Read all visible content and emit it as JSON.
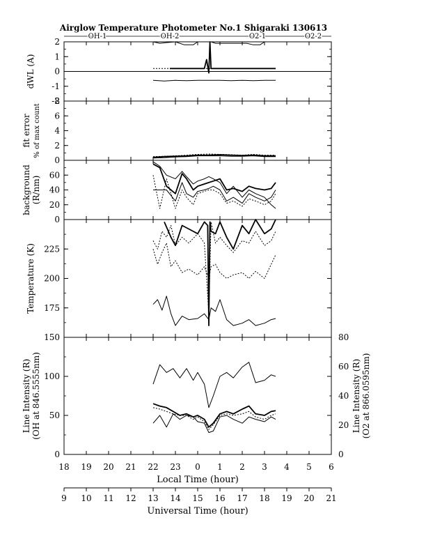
{
  "chart_data": {
    "type": "line",
    "title": "Airglow Temperature Photometer No.1  Shigaraki  130613",
    "legend": [
      "OH-1",
      "OH-2",
      "O2-1",
      "O2-2"
    ],
    "x_local": {
      "label": "Local Time (hour)",
      "ticks": [
        "18",
        "19",
        "20",
        "21",
        "22",
        "23",
        "0",
        "1",
        "2",
        "3",
        "4",
        "5",
        "6"
      ]
    },
    "x_ut": {
      "label": "Universal Time (hour)",
      "ticks": [
        "9",
        "10",
        "11",
        "12",
        "13",
        "14",
        "15",
        "16",
        "17",
        "18",
        "19",
        "20",
        "21"
      ]
    },
    "panels": [
      {
        "id": "dwl",
        "ylabel": [
          "dWL (A)"
        ],
        "ylim": [
          -2,
          2
        ],
        "yticks": [
          "-2",
          "-1",
          "0",
          "1",
          "2"
        ],
        "series": [
          {
            "style": "solid",
            "x": [
              13.0,
              13.5,
              14.0,
              14.5,
              15.0,
              15.4,
              15.5,
              15.6,
              15.8,
              16.0,
              16.5,
              17.0,
              17.5,
              18.0,
              18.5
            ],
            "y": [
              -0.6,
              -0.65,
              -0.6,
              -0.62,
              -0.6,
              -0.6,
              -0.6,
              -0.6,
              -0.6,
              -0.6,
              -0.62,
              -0.6,
              -0.62,
              -0.6,
              -0.6
            ]
          },
          {
            "style": "dotted",
            "x": [
              13.0,
              13.5,
              14.0,
              15.0,
              15.5,
              16.0,
              17.0,
              18.0,
              18.5
            ],
            "y": [
              0.2,
              0.2,
              0.2,
              0.2,
              0.2,
              0.2,
              0.2,
              0.2,
              0.2
            ]
          },
          {
            "style": "bold",
            "x": [
              13.75,
              14.5,
              15.0,
              15.3,
              15.4,
              15.5,
              15.55,
              15.6,
              15.7,
              16.0,
              17.0,
              18.0,
              18.5
            ],
            "y": [
              0.2,
              0.2,
              0.2,
              0.2,
              0.8,
              -0.1,
              2.0,
              0.2,
              0.2,
              0.2,
              0.2,
              0.2,
              0.2
            ]
          },
          {
            "style": "solid",
            "x": [
              13.0,
              13.3,
              13.6,
              14.0,
              14.4,
              14.8,
              15.0,
              15.2,
              15.4,
              15.5,
              15.6,
              15.8,
              16.0,
              16.5,
              17.0,
              17.2,
              17.5,
              17.8,
              18.0
            ],
            "y": [
              2.0,
              1.9,
              1.95,
              2.0,
              1.8,
              1.8,
              2.0,
              2.0,
              2.0,
              2.0,
              2.0,
              1.9,
              1.9,
              1.9,
              1.9,
              1.9,
              1.8,
              1.8,
              2.0
            ]
          }
        ]
      },
      {
        "id": "fit",
        "ylabel": [
          "fit error",
          "% of max count"
        ],
        "ylim": [
          0,
          8
        ],
        "yticks": [
          "0",
          "2",
          "4",
          "6",
          "8"
        ],
        "series": [
          {
            "style": "bold",
            "x": [
              13.0,
              13.5,
              14.0,
              14.5,
              15.0,
              15.5,
              16.0,
              16.5,
              17.0,
              17.5,
              18.0,
              18.5
            ],
            "y": [
              0.4,
              0.5,
              0.55,
              0.6,
              0.7,
              0.7,
              0.75,
              0.7,
              0.65,
              0.7,
              0.6,
              0.6
            ]
          },
          {
            "style": "dotted",
            "x": [
              13.0,
              13.5,
              14.0,
              14.5,
              15.0,
              15.5,
              16.0,
              16.5,
              17.0,
              17.5,
              18.0,
              18.5
            ],
            "y": [
              0.5,
              0.55,
              0.6,
              0.7,
              0.8,
              0.85,
              0.8,
              0.75,
              0.7,
              0.8,
              0.7,
              0.7
            ]
          },
          {
            "style": "solid",
            "x": [
              13.0,
              13.5,
              14.0,
              14.5,
              15.0,
              15.5,
              16.0,
              16.5,
              17.0,
              17.5,
              18.0,
              18.5
            ],
            "y": [
              0.3,
              0.35,
              0.45,
              0.5,
              0.6,
              0.6,
              0.6,
              0.55,
              0.55,
              0.6,
              0.5,
              0.5
            ]
          }
        ]
      },
      {
        "id": "background",
        "ylabel": [
          "background",
          "(R/nm)"
        ],
        "ylim": [
          0,
          80
        ],
        "yticks": [
          "0",
          "20",
          "40",
          "60"
        ],
        "series": [
          {
            "style": "bold",
            "x": [
              13.0,
              13.3,
              13.6,
              14.0,
              14.3,
              14.5,
              14.8,
              15.0,
              15.3,
              15.5,
              15.7,
              16.0,
              16.3,
              16.6,
              17.0,
              17.3,
              17.6,
              18.0,
              18.3,
              18.5
            ],
            "y": [
              75,
              70,
              45,
              35,
              62,
              55,
              40,
              45,
              48,
              50,
              52,
              55,
              40,
              42,
              38,
              45,
              42,
              40,
              42,
              50
            ]
          },
          {
            "style": "solid",
            "x": [
              13.0,
              13.3,
              13.6,
              14.0,
              14.3,
              14.5,
              14.8,
              15.0,
              15.3,
              15.5,
              15.7,
              16.0,
              16.3,
              16.6,
              17.0,
              17.3,
              17.6,
              18.0,
              18.3,
              18.5
            ],
            "y": [
              40,
              40,
              40,
              25,
              50,
              35,
              30,
              38,
              40,
              42,
              45,
              40,
              25,
              30,
              22,
              35,
              30,
              25,
              30,
              40
            ]
          },
          {
            "style": "dotted",
            "x": [
              13.0,
              13.3,
              13.6,
              14.0,
              14.3,
              14.5,
              14.8,
              15.0,
              15.3,
              15.5,
              15.7,
              16.0,
              16.3,
              16.6,
              17.0,
              17.3,
              17.6,
              18.0,
              18.3,
              18.5
            ],
            "y": [
              60,
              15,
              55,
              15,
              40,
              30,
              20,
              35,
              38,
              40,
              40,
              35,
              22,
              25,
              18,
              28,
              25,
              20,
              25,
              35
            ]
          },
          {
            "style": "solid",
            "x": [
              13.0,
              13.3,
              13.6,
              14.0,
              14.3,
              14.5,
              14.8,
              15.0,
              15.3,
              15.5,
              15.7,
              16.0,
              16.3,
              16.6,
              17.0,
              17.3,
              17.6,
              18.0,
              18.3,
              18.5
            ],
            "y": [
              78,
              72,
              60,
              55,
              65,
              58,
              48,
              52,
              55,
              58,
              55,
              50,
              35,
              45,
              30,
              40,
              35,
              30,
              20,
              15
            ]
          }
        ]
      },
      {
        "id": "temperature",
        "ylabel": [
          "Temperature (K)"
        ],
        "ylim": [
          150,
          250
        ],
        "yticks": [
          "175",
          "200",
          "225"
        ],
        "series": [
          {
            "style": "solid",
            "x": [
              13.0,
              13.2,
              13.4,
              13.6,
              13.8,
              14.0,
              14.3,
              14.6,
              15.0,
              15.3,
              15.5,
              15.6,
              15.8,
              16.0,
              16.3,
              16.6,
              17.0,
              17.3,
              17.6,
              18.0,
              18.3,
              18.5
            ],
            "y": [
              178,
              182,
              173,
              185,
              170,
              160,
              168,
              165,
              166,
              170,
              165,
              175,
              172,
              182,
              165,
              160,
              162,
              165,
              160,
              162,
              165,
              166
            ]
          },
          {
            "style": "dotted",
            "x": [
              13.0,
              13.2,
              13.4,
              13.6,
              13.8,
              14.0,
              14.3,
              14.6,
              15.0,
              15.3,
              15.5,
              15.6,
              15.8,
              16.0,
              16.3,
              16.6,
              17.0,
              17.3,
              17.6,
              18.0,
              18.3,
              18.5
            ],
            "y": [
              225,
              212,
              222,
              230,
              210,
              215,
              205,
              208,
              203,
              210,
              200,
              210,
              212,
              205,
              200,
              203,
              205,
              200,
              206,
              200,
              212,
              220
            ]
          },
          {
            "style": "dotted",
            "x": [
              13.0,
              13.2,
              13.4,
              13.6,
              13.8,
              14.0,
              14.3,
              14.6,
              15.0,
              15.3,
              15.5,
              15.6,
              15.8,
              16.0,
              16.3,
              16.6,
              17.0,
              17.3,
              17.6,
              18.0,
              18.3,
              18.5
            ],
            "y": [
              232,
              225,
              240,
              235,
              245,
              228,
              235,
              230,
              238,
              230,
              170,
              248,
              230,
              235,
              228,
              222,
              232,
              230,
              240,
              228,
              232,
              240
            ]
          },
          {
            "style": "bold",
            "x": [
              13.5,
              13.8,
              14.0,
              14.3,
              14.6,
              15.0,
              15.3,
              15.45,
              15.5,
              15.55,
              15.6,
              15.8,
              16.0,
              16.3,
              16.6,
              17.0,
              17.3,
              17.6,
              18.0,
              18.3,
              18.5
            ],
            "y": [
              248,
              235,
              228,
              245,
              242,
              238,
              248,
              245,
              160,
              248,
              240,
              238,
              248,
              235,
              225,
              245,
              238,
              250,
              238,
              242,
              250
            ]
          }
        ]
      },
      {
        "id": "intensity",
        "ylabel": [
          "Line Intensity (R)",
          "(OH at 846.5555nm)"
        ],
        "ylabel_right": [
          "Line Intensity (R)",
          "(O2 at 866.0595nm)"
        ],
        "ylim": [
          0,
          150
        ],
        "ylim_right": [
          0,
          80
        ],
        "yticks": [
          "0",
          "50",
          "100",
          "150"
        ],
        "yticks_right": [
          "0",
          "20",
          "40",
          "60",
          "80"
        ],
        "series": [
          {
            "style": "solid",
            "x": [
              13.0,
              13.3,
              13.6,
              13.9,
              14.2,
              14.5,
              14.8,
              15.0,
              15.3,
              15.5,
              15.7,
              16.0,
              16.3,
              16.6,
              17.0,
              17.3,
              17.6,
              18.0,
              18.3,
              18.5
            ],
            "y": [
              90,
              115,
              105,
              110,
              98,
              110,
              95,
              105,
              90,
              60,
              75,
              100,
              105,
              98,
              112,
              118,
              92,
              95,
              102,
              100
            ]
          },
          {
            "style": "bold",
            "x": [
              13.0,
              13.3,
              13.6,
              13.9,
              14.2,
              14.5,
              14.8,
              15.0,
              15.3,
              15.5,
              15.7,
              16.0,
              16.3,
              16.6,
              17.0,
              17.3,
              17.6,
              18.0,
              18.3,
              18.5
            ],
            "y": [
              65,
              62,
              60,
              55,
              50,
              52,
              48,
              50,
              45,
              35,
              40,
              52,
              55,
              52,
              58,
              62,
              52,
              50,
              55,
              56
            ]
          },
          {
            "style": "dotted",
            "x": [
              13.0,
              13.3,
              13.6,
              13.9,
              14.2,
              14.5,
              14.8,
              15.0,
              15.3,
              15.5,
              15.7,
              16.0,
              16.3,
              16.6,
              17.0,
              17.3,
              17.6,
              18.0,
              18.3,
              18.5
            ],
            "y": [
              60,
              58,
              55,
              52,
              50,
              50,
              45,
              48,
              42,
              32,
              38,
              50,
              52,
              50,
              52,
              55,
              48,
              45,
              50,
              52
            ]
          },
          {
            "style": "solid",
            "x": [
              13.0,
              13.3,
              13.6,
              13.9,
              14.2,
              14.5,
              14.8,
              15.0,
              15.3,
              15.5,
              15.7,
              16.0,
              16.3,
              16.6,
              17.0,
              17.3,
              17.6,
              18.0,
              18.3,
              18.5
            ],
            "y": [
              40,
              50,
              35,
              52,
              45,
              50,
              48,
              42,
              40,
              28,
              30,
              48,
              50,
              45,
              40,
              48,
              45,
              42,
              48,
              45
            ]
          }
        ]
      }
    ]
  }
}
